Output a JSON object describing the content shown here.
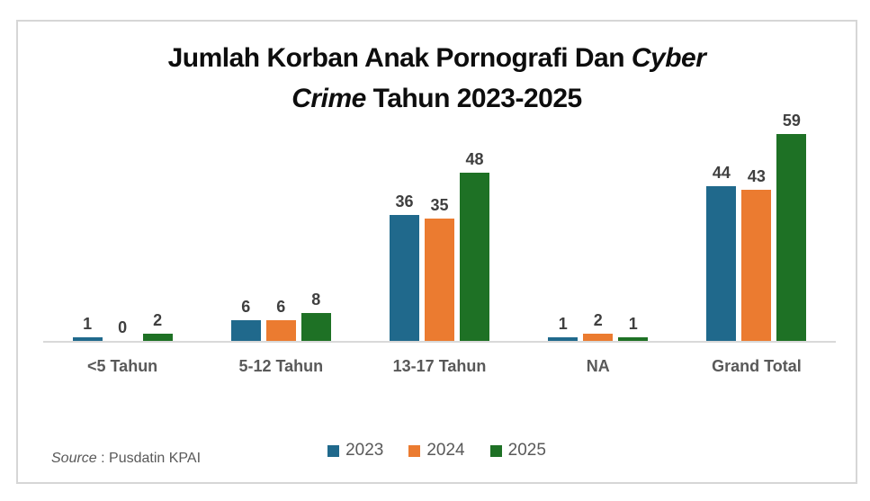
{
  "title": {
    "line1_regular": "Jumlah Korban Anak Pornografi Dan ",
    "line1_italic": "Cyber",
    "line2_italic": "Crime",
    "line2_regular": " Tahun 2023-2025"
  },
  "chart_data": {
    "type": "bar",
    "title": "Jumlah Korban Anak Pornografi Dan Cyber Crime Tahun 2023-2025",
    "categories": [
      "<5 Tahun",
      "5-12 Tahun",
      "13-17 Tahun",
      "NA",
      "Grand Total"
    ],
    "series": [
      {
        "name": "2023",
        "color": "#20698C",
        "values": [
          1,
          6,
          36,
          1,
          44
        ]
      },
      {
        "name": "2024",
        "color": "#EB7B30",
        "values": [
          0,
          6,
          35,
          2,
          43
        ]
      },
      {
        "name": "2025",
        "color": "#1E7125",
        "values": [
          2,
          8,
          48,
          1,
          59
        ]
      }
    ],
    "xlabel": "",
    "ylabel": "",
    "ylim": [
      0,
      60
    ],
    "grid": false,
    "data_labels": true,
    "legend_position": "bottom"
  },
  "source": {
    "prefix_italic": "Source",
    "rest": " : Pusdatin KPAI"
  },
  "colors": {
    "axis_line": "#D9D9D9",
    "frame_border": "#D6D6D6",
    "data_label_text": "#3F3F3F",
    "category_text": "#595959",
    "legend_text": "#595959"
  }
}
